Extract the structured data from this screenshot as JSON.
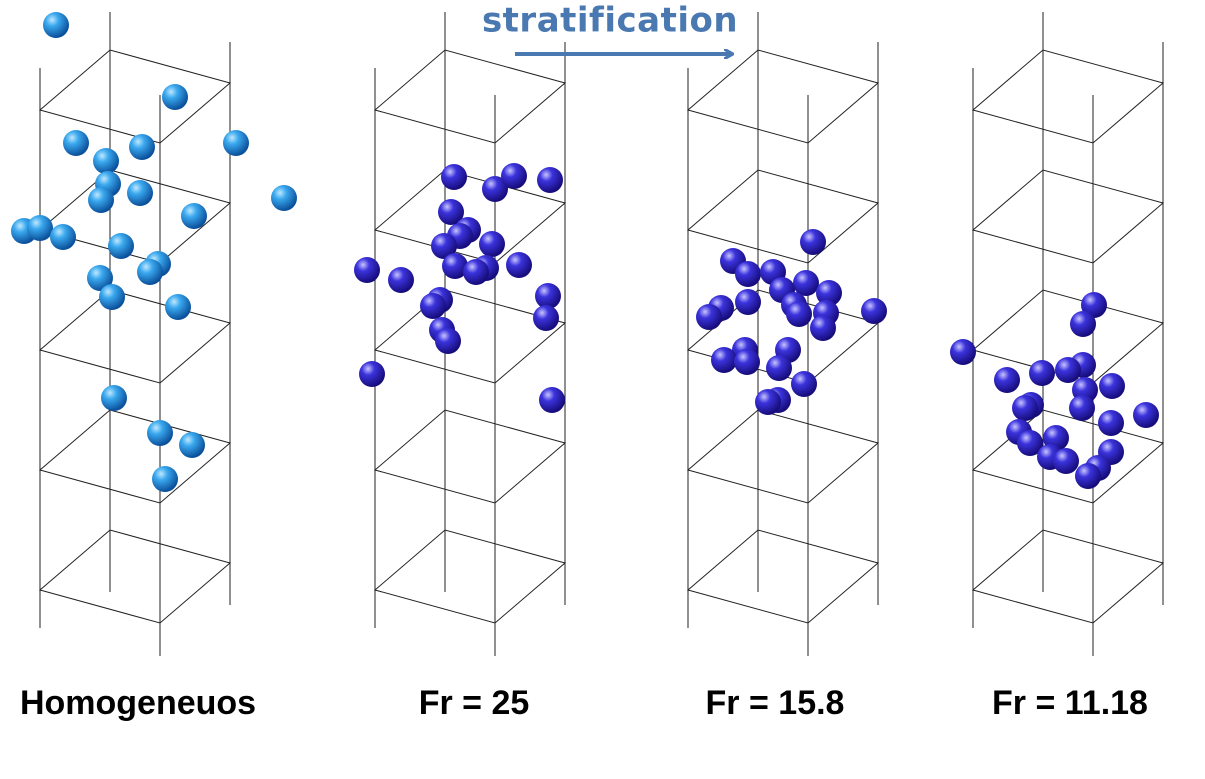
{
  "annotation": {
    "label": "stratification"
  },
  "panels": [
    {
      "label": "Homogeneuos"
    },
    {
      "label": "Fr = 25"
    },
    {
      "label": "Fr = 15.8"
    },
    {
      "label": "Fr = 11.18"
    }
  ]
}
